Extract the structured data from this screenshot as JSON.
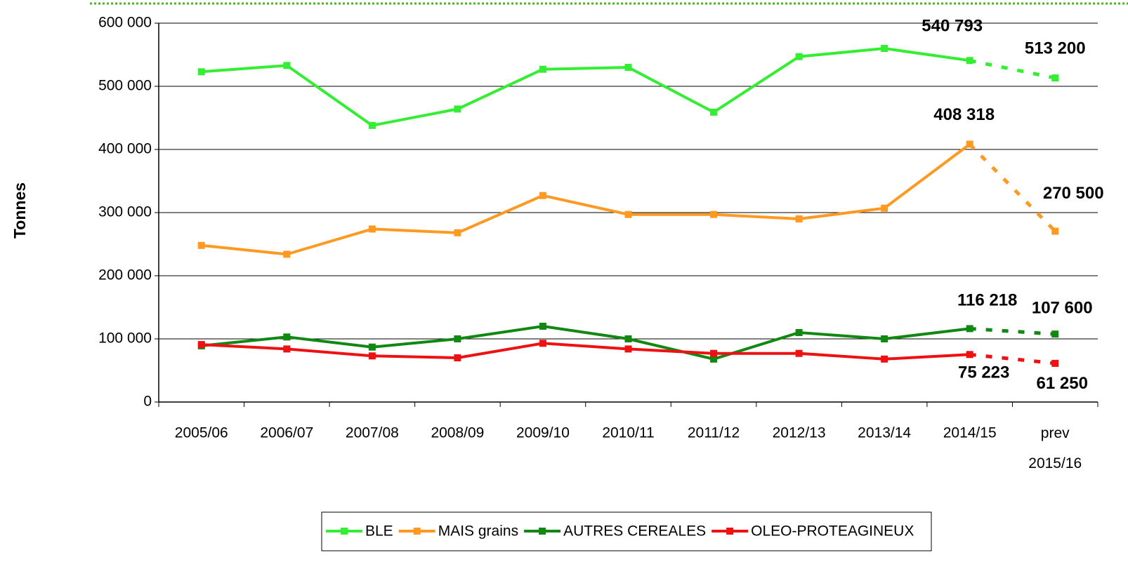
{
  "chart_data": {
    "type": "line",
    "y_label": "Tonnes",
    "categories": [
      "2005/06",
      "2006/07",
      "2007/08",
      "2008/09",
      "2009/10",
      "2010/11",
      "2011/12",
      "2012/13",
      "2013/14",
      "2014/15",
      "prev 2015/16"
    ],
    "series": [
      {
        "name": "BLE",
        "color": "#33ee33",
        "values": [
          523000,
          533000,
          438000,
          464000,
          527000,
          530000,
          459000,
          547000,
          560000,
          540793,
          513200
        ],
        "value_labels": [
          null,
          null,
          null,
          null,
          null,
          null,
          null,
          null,
          null,
          "540 793",
          "513 200"
        ]
      },
      {
        "name": "MAIS grains",
        "color": "#ff9922",
        "values": [
          248000,
          234000,
          274000,
          268000,
          327000,
          297000,
          297000,
          290000,
          307000,
          408318,
          270500
        ],
        "value_labels": [
          null,
          null,
          null,
          null,
          null,
          null,
          null,
          null,
          null,
          "408 318",
          "270 500"
        ]
      },
      {
        "name": "AUTRES CEREALES",
        "color": "#118811",
        "values": [
          89000,
          103000,
          87000,
          100000,
          120000,
          100000,
          68000,
          110000,
          100000,
          116218,
          107600
        ],
        "value_labels": [
          null,
          null,
          null,
          null,
          null,
          null,
          null,
          null,
          null,
          "116 218",
          "107 600"
        ]
      },
      {
        "name": "OLEO-PROTEAGINEUX",
        "color": "#ee1111",
        "values": [
          91000,
          84000,
          73000,
          70000,
          93000,
          84000,
          77000,
          77000,
          68000,
          75223,
          61250
        ],
        "value_labels": [
          null,
          null,
          null,
          null,
          null,
          null,
          null,
          null,
          null,
          "75 223",
          "61 250"
        ]
      }
    ],
    "ylim": [
      0,
      600000
    ],
    "yticks": [
      0,
      {
        "value": 100000,
        "label": "100 000"
      },
      {
        "value": 200000,
        "label": "200 000"
      },
      {
        "value": 300000,
        "label": "300 000"
      },
      {
        "value": 400000,
        "label": "400 000"
      },
      {
        "value": 500000,
        "label": "500 000"
      },
      {
        "value": 600000,
        "label": "600 000"
      }
    ],
    "grid": true,
    "legend": "bottom"
  }
}
